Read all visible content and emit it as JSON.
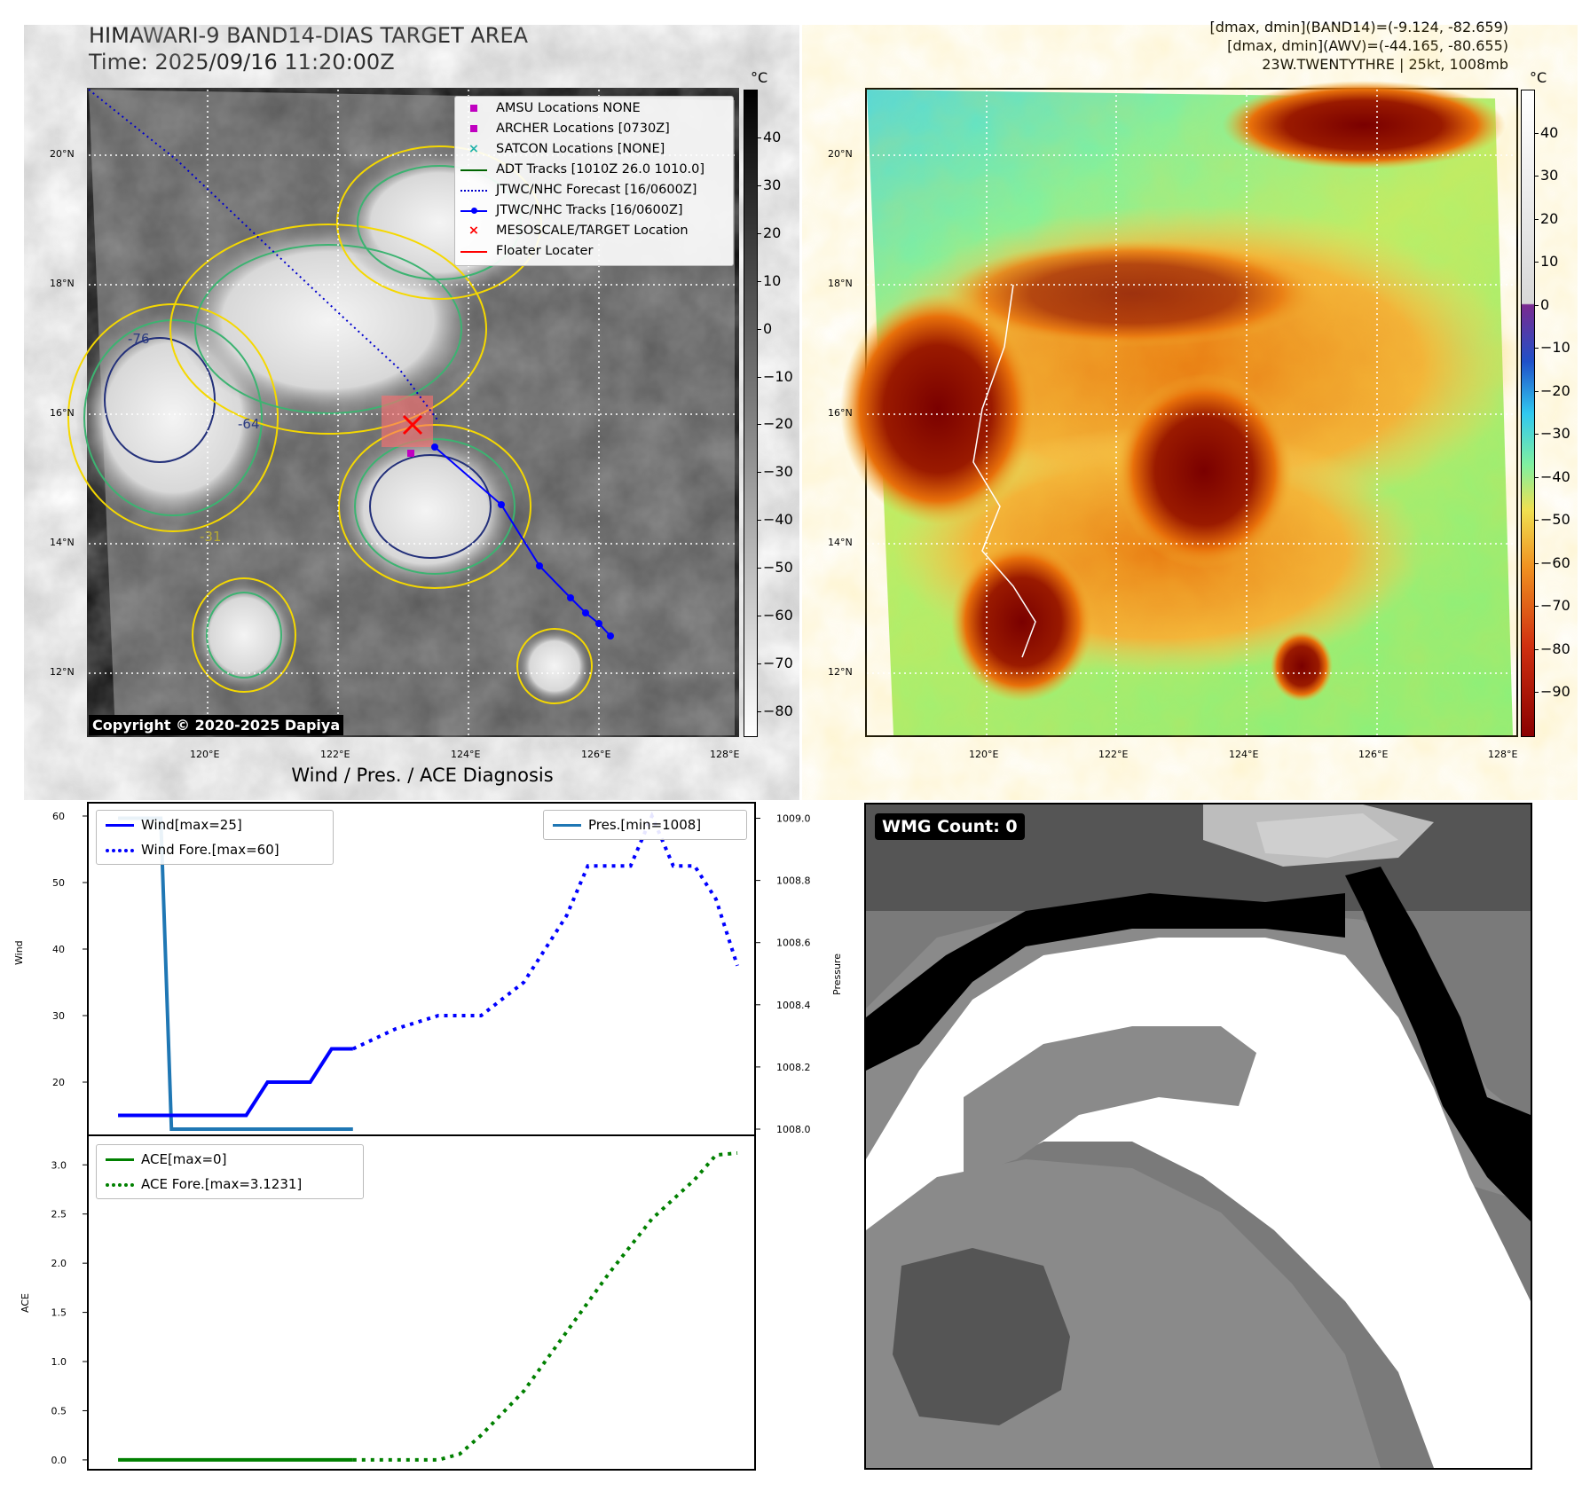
{
  "header": {
    "title_line1": "HIMAWARI-9 BAND14-DIAS TARGET AREA",
    "title_line2": "Time: 2025/09/16 11:20:00Z",
    "right_line1": "[dmax, dmin](BAND14)=(-9.124, -82.659)",
    "right_line2": "[dmax, dmin](AWV)=(-44.165, -80.655)",
    "right_line3": "23W.TWENTYTHRE | 25kt, 1008mb"
  },
  "map_common": {
    "lat_labels": [
      "20°N",
      "18°N",
      "16°N",
      "14°N",
      "12°N"
    ],
    "lon_labels": [
      "120°E",
      "122°E",
      "124°E",
      "126°E",
      "128°E"
    ]
  },
  "map_left": {
    "copyright": "Copyright © 2020-2025 Dapiya",
    "contour_labels": [
      "-31",
      "-64",
      "-76"
    ],
    "legend": [
      {
        "label": "AMSU Locations NONE",
        "symbol": "square",
        "color": "#c000c0"
      },
      {
        "label": "ARCHER Locations [0730Z]",
        "symbol": "square",
        "color": "#c000c0"
      },
      {
        "label": "SATCON Locations [NONE]",
        "symbol": "x",
        "color": "#20b2aa"
      },
      {
        "label": "ADT Tracks [1010Z 26.0 1010.0]",
        "symbol": "line",
        "color": "#006400"
      },
      {
        "label": "JTWC/NHC Forecast [16/0600Z]",
        "symbol": "dotted",
        "color": "#0000cd"
      },
      {
        "label": "JTWC/NHC Tracks [16/0600Z]",
        "symbol": "line-dot",
        "color": "#0000ff"
      },
      {
        "label": "MESOSCALE/TARGET Location",
        "symbol": "x",
        "color": "#ff0000"
      },
      {
        "label": "Floater Locater",
        "symbol": "line",
        "color": "#ff0000"
      }
    ],
    "colorbar": {
      "unit": "°C",
      "ticks": [
        "40",
        "30",
        "20",
        "10",
        "0",
        "−10",
        "−20",
        "−30",
        "−40",
        "−50",
        "−60",
        "−70",
        "−80"
      ],
      "range": [
        -85,
        50
      ],
      "colormap": "gray reversed"
    }
  },
  "map_right": {
    "colorbar": {
      "unit": "°C",
      "ticks": [
        "40",
        "30",
        "20",
        "10",
        "0",
        "−10",
        "−20",
        "−30",
        "−40",
        "−50",
        "−60",
        "−70",
        "−80",
        "−90"
      ],
      "range": [
        -100,
        50
      ],
      "colormap": "white above 0, rainbow/jet-like to dark red below"
    }
  },
  "wmg_panel": {
    "label": "WMG Count: 0"
  },
  "chart_data": [
    {
      "type": "line",
      "title": "Wind / Pres. / ACE Diagnosis",
      "ylabel": "Wind",
      "ylabel_right": "Pressure",
      "ylim": [
        12,
        62
      ],
      "ylim_right": [
        1007.98,
        1009.05
      ],
      "yticks": [
        "20",
        "30",
        "40",
        "50",
        "60"
      ],
      "yticks_right": [
        "1008.0",
        "1008.2",
        "1008.4",
        "1008.6",
        "1008.8",
        "1009.0"
      ],
      "xlim": [
        0,
        30
      ],
      "series": [
        {
          "name": "Wind[max=25]",
          "color": "#0000ff",
          "style": "solid",
          "axis": "left",
          "x": [
            1,
            4,
            5,
            6,
            7,
            8,
            9,
            10,
            11,
            12
          ],
          "y": [
            15,
            15,
            15,
            15,
            15,
            20,
            20,
            20,
            25,
            25
          ]
        },
        {
          "name": "Wind Fore.[max=60]",
          "color": "#0000ff",
          "style": "dotted",
          "axis": "left",
          "x": [
            12,
            14,
            16,
            17,
            18,
            20,
            21,
            22,
            23,
            24,
            25,
            26,
            27,
            28,
            29,
            30
          ],
          "y": [
            25,
            28,
            30,
            30,
            30,
            35,
            40,
            45,
            52.5,
            52.5,
            52.5,
            60,
            52.5,
            52.5,
            47.5,
            37.5
          ]
        },
        {
          "name": "Pres.[min=1008]",
          "color": "#1f77b4",
          "style": "solid",
          "axis": "right",
          "x": [
            1,
            2,
            3,
            3.5,
            5,
            6,
            7,
            12
          ],
          "y": [
            1009.0,
            1009.0,
            1009.0,
            1008.0,
            1008.0,
            1008.0,
            1008.0,
            1008.0
          ]
        }
      ]
    },
    {
      "type": "line",
      "ylabel": "ACE",
      "ylim": [
        -0.1,
        3.3
      ],
      "yticks": [
        "0.0",
        "0.5",
        "1.0",
        "1.5",
        "2.0",
        "2.5",
        "3.0"
      ],
      "xlim": [
        0,
        30
      ],
      "series": [
        {
          "name": "ACE[max=0]",
          "color": "#008000",
          "style": "solid",
          "x": [
            1,
            12
          ],
          "y": [
            0,
            0
          ]
        },
        {
          "name": "ACE Fore.[max=3.1231]",
          "color": "#008000",
          "style": "dotted",
          "x": [
            12,
            14,
            16,
            17,
            18,
            20,
            22,
            24,
            26,
            28,
            29,
            30
          ],
          "y": [
            0,
            0,
            0,
            0.06,
            0.25,
            0.7,
            1.3,
            1.9,
            2.45,
            2.85,
            3.1,
            3.12
          ]
        }
      ]
    }
  ]
}
